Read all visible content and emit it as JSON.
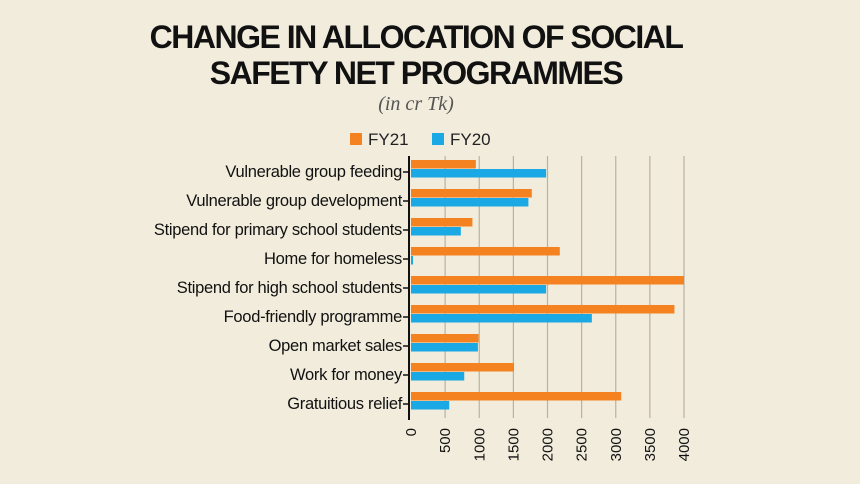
{
  "chart_data": {
    "type": "bar",
    "orientation": "horizontal",
    "title_line1": "CHANGE IN ALLOCATION OF SOCIAL",
    "title_line2": "SAFETY NET PROGRAMMES",
    "subtitle": "(in cr Tk)",
    "categories": [
      "Vulnerable group feeding",
      "Vulnerable group development",
      "Stipend for primary school students",
      "Home for homeless",
      "Stipend for high school students",
      "Food-friendly programme",
      "Open market sales",
      "Work for money",
      "Gratuitious relief"
    ],
    "series": [
      {
        "name": "FY21",
        "color": "#f58220",
        "values": [
          950,
          1770,
          900,
          2180,
          4000,
          3860,
          990,
          1510,
          3080
        ]
      },
      {
        "name": "FY20",
        "color": "#1aa9e5",
        "values": [
          1980,
          1720,
          730,
          30,
          1980,
          2650,
          980,
          780,
          560
        ]
      }
    ],
    "xlim": [
      0,
      4000
    ],
    "ticks": [
      "0",
      "500",
      "1000",
      "1500",
      "2000",
      "2500",
      "3000",
      "3500",
      "4000"
    ],
    "grid": true,
    "legend_position": "top"
  }
}
